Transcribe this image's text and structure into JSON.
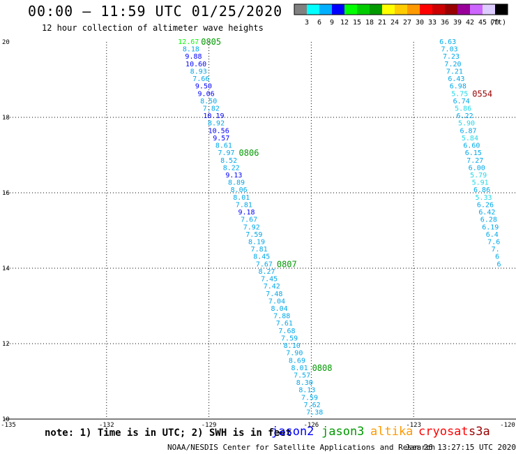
{
  "header": {
    "title": "00:00 – 11:59 UTC 01/25/2020",
    "subtitle": "12 hour collection of altimeter wave heights"
  },
  "colorbar": {
    "unit_label": "(ft)",
    "bins": [
      {
        "label": "3",
        "color": "#808080"
      },
      {
        "label": "6",
        "color": "#00ffff"
      },
      {
        "label": "9",
        "color": "#00b0ff"
      },
      {
        "label": "12",
        "color": "#0000ff"
      },
      {
        "label": "15",
        "color": "#00ff00"
      },
      {
        "label": "18",
        "color": "#00cc00"
      },
      {
        "label": "21",
        "color": "#009900"
      },
      {
        "label": "24",
        "color": "#ffff00"
      },
      {
        "label": "27",
        "color": "#ffcc00"
      },
      {
        "label": "30",
        "color": "#ff9900"
      },
      {
        "label": "33",
        "color": "#ff0000"
      },
      {
        "label": "36",
        "color": "#cc0000"
      },
      {
        "label": "39",
        "color": "#990000"
      },
      {
        "label": "42",
        "color": "#990099"
      },
      {
        "label": "45",
        "color": "#cc66ff"
      },
      {
        "label": "70",
        "color": "#ddccff"
      },
      {
        "label": "",
        "color": "#000000"
      }
    ]
  },
  "map": {
    "lon_range": [
      -135,
      -120
    ],
    "lat_range": [
      10,
      20
    ],
    "lon_ticks": [
      "-135",
      "-132",
      "-129",
      "-126",
      "-123",
      "-120"
    ],
    "lat_ticks": [
      "10",
      "12",
      "14",
      "16",
      "18",
      "20"
    ]
  },
  "tracks": [
    {
      "name": "west",
      "lon_start": -129.6,
      "lon_end": -125.9,
      "values": [
        "12.67",
        "8.18",
        "9.88",
        "10.60",
        "8.93",
        "7.66",
        "9.50",
        "9.06",
        "8.50",
        "7.82",
        "10.19",
        "8.92",
        "10.56",
        "9.57",
        "8.61",
        "7.97",
        "8.52",
        "8.22",
        "9.13",
        "8.89",
        "8.06",
        "8.01",
        "7.81",
        "9.18",
        "7.67",
        "7.92",
        "7.59",
        "8.19",
        "7.81",
        "8.45",
        "7.67",
        "8.27",
        "7.45",
        "7.42",
        "7.48",
        "7.04",
        "8.04",
        "7.88",
        "7.61",
        "7.68",
        "7.59",
        "8.10",
        "7.90",
        "8.69",
        "8.01",
        "7.57",
        "8.30",
        "8.13",
        "7.59",
        "7.62",
        "7.38"
      ],
      "times": [
        {
          "index": 0,
          "label": "0805"
        },
        {
          "index": 15,
          "label": "0806"
        },
        {
          "index": 30,
          "label": "0807"
        },
        {
          "index": 44,
          "label": "0808"
        }
      ]
    },
    {
      "name": "east",
      "lon_start": -122.0,
      "lon_end": -120.5,
      "values": [
        "6.63",
        "7.03",
        "7.23",
        "7.20",
        "7.21",
        "6.43",
        "6.98",
        "5.75",
        "6.74",
        "5.86",
        "6.22",
        "5.90",
        "6.87",
        "5.84",
        "6.60",
        "6.15",
        "7.27",
        "6.00",
        "5.79",
        "5.91",
        "6.86",
        "5.33",
        "6.26",
        "6.42",
        "6.28",
        "6.19",
        "6.4",
        "7.6",
        "7.",
        "6",
        "6"
      ],
      "times": [
        {
          "index": 7,
          "label": "0554"
        }
      ]
    }
  ],
  "footer": {
    "note": "note: 1) Time is in UTC; 2) SWH is in feet",
    "satellites": [
      {
        "name": "jason2",
        "color": "#0000ff"
      },
      {
        "name": "jason3",
        "color": "#009900"
      },
      {
        "name": "altika",
        "color": "#ff9900"
      },
      {
        "name": "cryosat",
        "color": "#ff0000"
      },
      {
        "name": "s3a",
        "color": "#990000"
      }
    ],
    "credit": "NOAA/NESDIS Center for Satellite Applications and Research",
    "timestamp": "Jan 26 13:27:15 UTC 2020"
  }
}
